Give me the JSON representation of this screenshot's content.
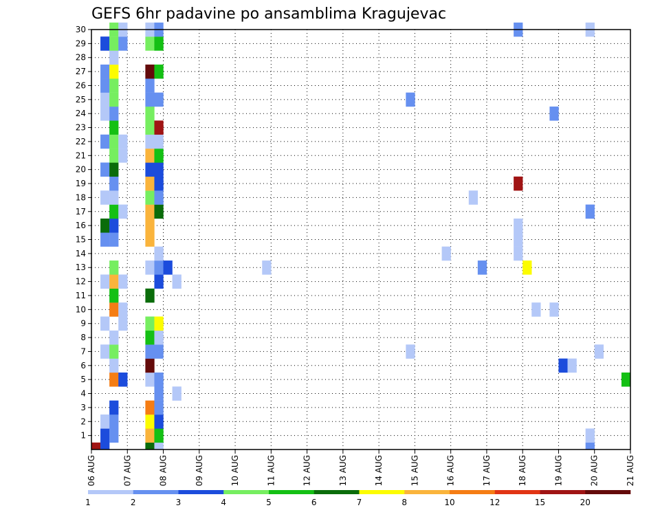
{
  "chart_data": {
    "type": "heatmap",
    "title": "GEFS 6hr padavine po ansamblima Kragujevac",
    "x_labels": [
      "06 AUG",
      "07 AUG",
      "08 AUG",
      "09 AUG",
      "10 AUG",
      "11 AUG",
      "12 AUG",
      "13 AUG",
      "14 AUG",
      "15 AUG",
      "16 AUG",
      "17 AUG",
      "18 AUG",
      "19 AUG",
      "20 AUG",
      "21 AUG"
    ],
    "y_labels": [
      "1",
      "2",
      "3",
      "4",
      "5",
      "6",
      "7",
      "8",
      "9",
      "10",
      "11",
      "12",
      "13",
      "14",
      "15",
      "16",
      "17",
      "18",
      "19",
      "20",
      "21",
      "22",
      "23",
      "24",
      "25",
      "26",
      "27",
      "28",
      "29",
      "30"
    ],
    "xlim": [
      0,
      60
    ],
    "ylim": [
      0,
      30
    ],
    "time_step": "6hr",
    "grid": true,
    "colorbar": {
      "position": "bottom",
      "labels": [
        "1",
        "2",
        "3",
        "4",
        "5",
        "6",
        "7",
        "8",
        "10",
        "12",
        "15",
        "20"
      ],
      "colors": [
        "#b4c8f8",
        "#6690f0",
        "#1c4cdc",
        "#76ee60",
        "#14c014",
        "#0a6c0a",
        "#fcfc00",
        "#fab43c",
        "#f57d14",
        "#e13414",
        "#a01414",
        "#640a0a"
      ]
    },
    "cells": [
      {
        "x": 0.5,
        "y": 0.5,
        "v": 15
      },
      {
        "x": 1.5,
        "y": 0.5,
        "v": 3
      },
      {
        "x": 1.5,
        "y": 1,
        "v": 3
      },
      {
        "x": 1.5,
        "y": 2,
        "v": 1
      },
      {
        "x": 1.5,
        "y": 7,
        "v": 1
      },
      {
        "x": 1.5,
        "y": 9,
        "v": 1
      },
      {
        "x": 1.5,
        "y": 12,
        "v": 1
      },
      {
        "x": 1.5,
        "y": 15,
        "v": 2
      },
      {
        "x": 1.5,
        "y": 16,
        "v": 6
      },
      {
        "x": 1.5,
        "y": 18,
        "v": 1
      },
      {
        "x": 1.5,
        "y": 20,
        "v": 2
      },
      {
        "x": 1.5,
        "y": 22,
        "v": 2
      },
      {
        "x": 1.5,
        "y": 24,
        "v": 1
      },
      {
        "x": 1.5,
        "y": 25,
        "v": 1
      },
      {
        "x": 1.5,
        "y": 26,
        "v": 2
      },
      {
        "x": 1.5,
        "y": 27,
        "v": 2
      },
      {
        "x": 1.5,
        "y": 29,
        "v": 3
      },
      {
        "x": 2.5,
        "y": 1,
        "v": 2
      },
      {
        "x": 2.5,
        "y": 2,
        "v": 2
      },
      {
        "x": 2.5,
        "y": 3,
        "v": 3
      },
      {
        "x": 2.5,
        "y": 5,
        "v": 10
      },
      {
        "x": 2.5,
        "y": 6,
        "v": 1
      },
      {
        "x": 2.5,
        "y": 7,
        "v": 4
      },
      {
        "x": 2.5,
        "y": 8,
        "v": 1
      },
      {
        "x": 2.5,
        "y": 10,
        "v": 10
      },
      {
        "x": 2.5,
        "y": 11,
        "v": 5
      },
      {
        "x": 2.5,
        "y": 12,
        "v": 8
      },
      {
        "x": 2.5,
        "y": 13,
        "v": 4
      },
      {
        "x": 2.5,
        "y": 15,
        "v": 2
      },
      {
        "x": 2.5,
        "y": 16,
        "v": 3
      },
      {
        "x": 2.5,
        "y": 17,
        "v": 5
      },
      {
        "x": 2.5,
        "y": 18,
        "v": 1
      },
      {
        "x": 2.5,
        "y": 19,
        "v": 2
      },
      {
        "x": 2.5,
        "y": 20,
        "v": 6
      },
      {
        "x": 2.5,
        "y": 21,
        "v": 4
      },
      {
        "x": 2.5,
        "y": 22,
        "v": 4
      },
      {
        "x": 2.5,
        "y": 23,
        "v": 5
      },
      {
        "x": 2.5,
        "y": 24,
        "v": 2
      },
      {
        "x": 2.5,
        "y": 25,
        "v": 4
      },
      {
        "x": 2.5,
        "y": 26,
        "v": 4
      },
      {
        "x": 2.5,
        "y": 27,
        "v": 7
      },
      {
        "x": 2.5,
        "y": 28,
        "v": 1
      },
      {
        "x": 2.5,
        "y": 29,
        "v": 4
      },
      {
        "x": 2.5,
        "y": 30,
        "v": 4
      },
      {
        "x": 3.5,
        "y": 5,
        "v": 3
      },
      {
        "x": 3.5,
        "y": 9,
        "v": 1
      },
      {
        "x": 3.5,
        "y": 10,
        "v": 1
      },
      {
        "x": 3.5,
        "y": 12,
        "v": 1
      },
      {
        "x": 3.5,
        "y": 17,
        "v": 1
      },
      {
        "x": 3.5,
        "y": 21,
        "v": 1
      },
      {
        "x": 3.5,
        "y": 22,
        "v": 1
      },
      {
        "x": 3.5,
        "y": 29,
        "v": 2
      },
      {
        "x": 3.5,
        "y": 30,
        "v": 1
      },
      {
        "x": 6.5,
        "y": 0.5,
        "v": 6
      },
      {
        "x": 6.5,
        "y": 1,
        "v": 8
      },
      {
        "x": 6.5,
        "y": 2,
        "v": 7
      },
      {
        "x": 6.5,
        "y": 3,
        "v": 10
      },
      {
        "x": 6.5,
        "y": 5,
        "v": 1
      },
      {
        "x": 6.5,
        "y": 6,
        "v": 20
      },
      {
        "x": 6.5,
        "y": 7,
        "v": 2
      },
      {
        "x": 6.5,
        "y": 8,
        "v": 5
      },
      {
        "x": 6.5,
        "y": 9,
        "v": 4
      },
      {
        "x": 6.5,
        "y": 11,
        "v": 6
      },
      {
        "x": 6.5,
        "y": 13,
        "v": 1
      },
      {
        "x": 6.5,
        "y": 15,
        "v": 8
      },
      {
        "x": 6.5,
        "y": 16,
        "v": 8
      },
      {
        "x": 6.5,
        "y": 17,
        "v": 8
      },
      {
        "x": 6.5,
        "y": 18,
        "v": 4
      },
      {
        "x": 6.5,
        "y": 19,
        "v": 8
      },
      {
        "x": 6.5,
        "y": 20,
        "v": 3
      },
      {
        "x": 6.5,
        "y": 21,
        "v": 8
      },
      {
        "x": 6.5,
        "y": 22,
        "v": 1
      },
      {
        "x": 6.5,
        "y": 23,
        "v": 4
      },
      {
        "x": 6.5,
        "y": 24,
        "v": 4
      },
      {
        "x": 6.5,
        "y": 25,
        "v": 2
      },
      {
        "x": 6.5,
        "y": 26,
        "v": 2
      },
      {
        "x": 6.5,
        "y": 27,
        "v": 20
      },
      {
        "x": 6.5,
        "y": 29,
        "v": 4
      },
      {
        "x": 6.5,
        "y": 30,
        "v": 1
      },
      {
        "x": 7.5,
        "y": 0.5,
        "v": 1
      },
      {
        "x": 7.5,
        "y": 1,
        "v": 5
      },
      {
        "x": 7.5,
        "y": 2,
        "v": 3
      },
      {
        "x": 7.5,
        "y": 3,
        "v": 2
      },
      {
        "x": 7.5,
        "y": 4,
        "v": 2
      },
      {
        "x": 7.5,
        "y": 5,
        "v": 2
      },
      {
        "x": 7.5,
        "y": 7,
        "v": 2
      },
      {
        "x": 7.5,
        "y": 8,
        "v": 1
      },
      {
        "x": 7.5,
        "y": 9,
        "v": 7
      },
      {
        "x": 7.5,
        "y": 12,
        "v": 3
      },
      {
        "x": 7.5,
        "y": 13,
        "v": 2
      },
      {
        "x": 7.5,
        "y": 14,
        "v": 1
      },
      {
        "x": 7.5,
        "y": 17,
        "v": 6
      },
      {
        "x": 7.5,
        "y": 18,
        "v": 2
      },
      {
        "x": 7.5,
        "y": 19,
        "v": 3
      },
      {
        "x": 7.5,
        "y": 20,
        "v": 3
      },
      {
        "x": 7.5,
        "y": 21,
        "v": 5
      },
      {
        "x": 7.5,
        "y": 22,
        "v": 1
      },
      {
        "x": 7.5,
        "y": 23,
        "v": 15
      },
      {
        "x": 7.5,
        "y": 25,
        "v": 2
      },
      {
        "x": 7.5,
        "y": 27,
        "v": 5
      },
      {
        "x": 7.5,
        "y": 29,
        "v": 5
      },
      {
        "x": 7.5,
        "y": 30,
        "v": 2
      },
      {
        "x": 8.5,
        "y": 13,
        "v": 3
      },
      {
        "x": 9.5,
        "y": 4,
        "v": 1
      },
      {
        "x": 9.5,
        "y": 12,
        "v": 1
      },
      {
        "x": 19.5,
        "y": 13,
        "v": 1
      },
      {
        "x": 35.5,
        "y": 7,
        "v": 1
      },
      {
        "x": 35.5,
        "y": 25,
        "v": 2
      },
      {
        "x": 39.5,
        "y": 14,
        "v": 1
      },
      {
        "x": 42.5,
        "y": 18,
        "v": 1
      },
      {
        "x": 43.5,
        "y": 13,
        "v": 2
      },
      {
        "x": 47.5,
        "y": 14,
        "v": 1
      },
      {
        "x": 47.5,
        "y": 15,
        "v": 1
      },
      {
        "x": 47.5,
        "y": 16,
        "v": 1
      },
      {
        "x": 47.5,
        "y": 19,
        "v": 15
      },
      {
        "x": 47.5,
        "y": 30,
        "v": 2
      },
      {
        "x": 48.5,
        "y": 13,
        "v": 7
      },
      {
        "x": 49.5,
        "y": 10,
        "v": 1
      },
      {
        "x": 51.5,
        "y": 10,
        "v": 1
      },
      {
        "x": 51.5,
        "y": 24,
        "v": 2
      },
      {
        "x": 52.5,
        "y": 6,
        "v": 3
      },
      {
        "x": 53.5,
        "y": 6,
        "v": 1
      },
      {
        "x": 55.5,
        "y": 0.5,
        "v": 2
      },
      {
        "x": 55.5,
        "y": 1,
        "v": 1
      },
      {
        "x": 55.5,
        "y": 17,
        "v": 2
      },
      {
        "x": 55.5,
        "y": 30,
        "v": 1
      },
      {
        "x": 56.5,
        "y": 7,
        "v": 1
      },
      {
        "x": 59.5,
        "y": 5,
        "v": 5
      }
    ]
  }
}
